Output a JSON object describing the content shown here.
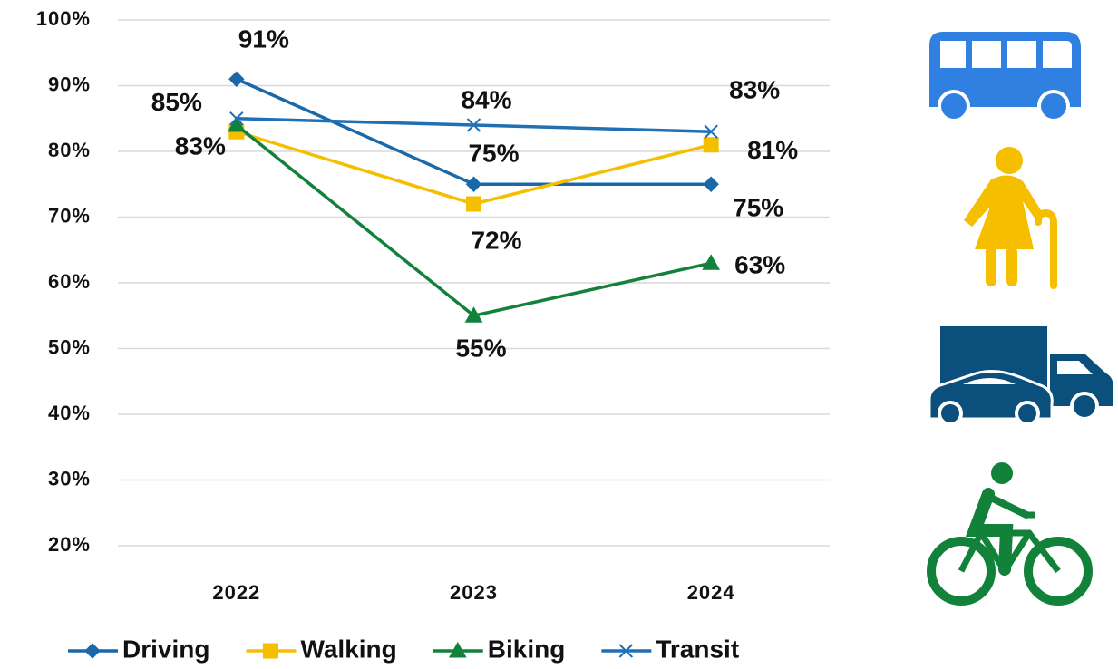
{
  "chart_data": {
    "type": "line",
    "categories": [
      "2022",
      "2023",
      "2024"
    ],
    "series": [
      {
        "name": "Driving",
        "color": "#1b68a8",
        "marker": "diamond",
        "values": [
          91,
          75,
          75
        ],
        "value_labels": [
          "91%",
          "75%",
          "75%"
        ]
      },
      {
        "name": "Walking",
        "color": "#f5bf00",
        "marker": "square",
        "values": [
          83,
          72,
          81
        ],
        "value_labels": [
          "83%",
          "72%",
          "81%"
        ]
      },
      {
        "name": "Biking",
        "color": "#12823a",
        "marker": "triangle",
        "values": [
          84,
          55,
          63
        ],
        "value_labels": [
          null,
          "55%",
          "63%"
        ]
      },
      {
        "name": "Transit",
        "color": "#1f70b4",
        "marker": "x",
        "values": [
          85,
          84,
          83
        ],
        "value_labels": [
          "85%",
          "84%",
          "83%"
        ]
      }
    ],
    "ylim": [
      20,
      100
    ],
    "yticks": [
      {
        "value": 20,
        "label": "20%"
      },
      {
        "value": 30,
        "label": "30%"
      },
      {
        "value": 40,
        "label": "40%"
      },
      {
        "value": 50,
        "label": "50%"
      },
      {
        "value": 60,
        "label": "60%"
      },
      {
        "value": 70,
        "label": "70%"
      },
      {
        "value": 80,
        "label": "80%"
      },
      {
        "value": 90,
        "label": "90%"
      },
      {
        "value": 100,
        "label": "100%"
      }
    ],
    "grid": true,
    "legend": "bottom"
  }
}
